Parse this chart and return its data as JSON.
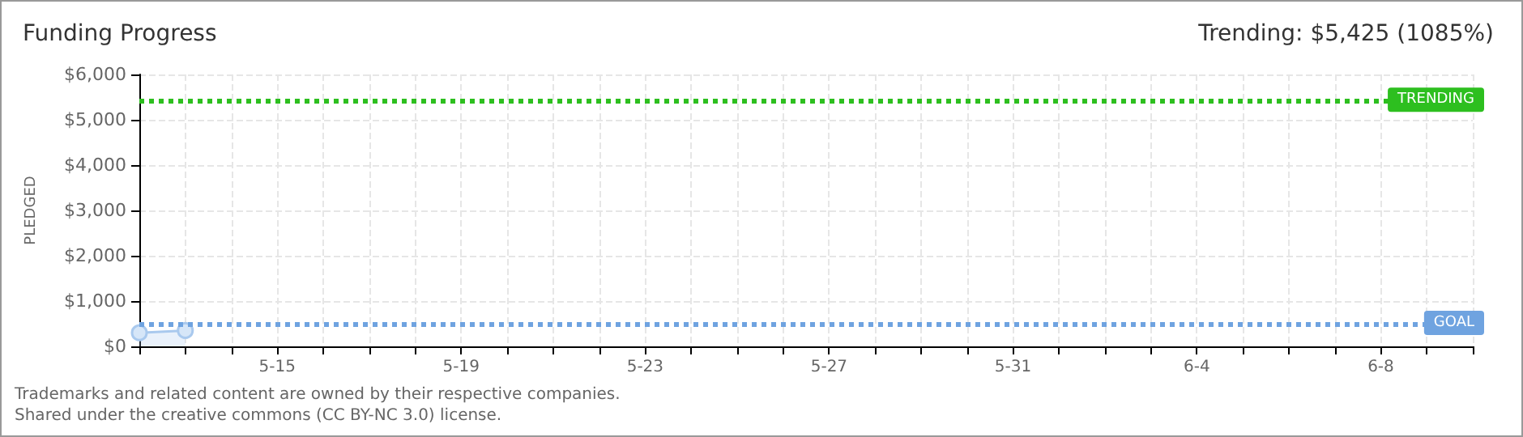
{
  "chart_data": {
    "type": "area",
    "title": "Funding Progress",
    "subtitle": "Trending: $5,425 (1085%)",
    "ylabel": "PLEDGED",
    "x": [
      "--05-12",
      "--05-13"
    ],
    "series": [
      {
        "color": "#a9c9ee",
        "values": [
          300,
          350
        ]
      }
    ],
    "xlim": [
      "--05-12",
      "--06-10"
    ],
    "xticks": [
      {
        "value": "--05-12",
        "label": null
      },
      {
        "value": "--05-13",
        "label": null
      },
      {
        "value": "--05-14",
        "label": null
      },
      {
        "value": "--05-15",
        "label": "5-15"
      },
      {
        "value": "--05-16",
        "label": null
      },
      {
        "value": "--05-17",
        "label": null
      },
      {
        "value": "--05-18",
        "label": null
      },
      {
        "value": "--05-19",
        "label": "5-19"
      },
      {
        "value": "--05-20",
        "label": null
      },
      {
        "value": "--05-21",
        "label": null
      },
      {
        "value": "--05-22",
        "label": null
      },
      {
        "value": "--05-23",
        "label": "5-23"
      },
      {
        "value": "--05-24",
        "label": null
      },
      {
        "value": "--05-25",
        "label": null
      },
      {
        "value": "--05-26",
        "label": null
      },
      {
        "value": "--05-27",
        "label": "5-27"
      },
      {
        "value": "--05-28",
        "label": null
      },
      {
        "value": "--05-29",
        "label": null
      },
      {
        "value": "--05-30",
        "label": null
      },
      {
        "value": "--05-31",
        "label": "5-31"
      },
      {
        "value": "--06-01",
        "label": null
      },
      {
        "value": "--06-02",
        "label": null
      },
      {
        "value": "--06-03",
        "label": null
      },
      {
        "value": "--06-04",
        "label": "6-4"
      },
      {
        "value": "--06-05",
        "label": null
      },
      {
        "value": "--06-06",
        "label": null
      },
      {
        "value": "--06-07",
        "label": null
      },
      {
        "value": "--06-08",
        "label": "6-8"
      },
      {
        "value": "--06-09",
        "label": null
      },
      {
        "value": "--06-10",
        "label": null
      }
    ],
    "ylim": [
      0,
      6000
    ],
    "yticks": [
      {
        "value": 0,
        "label": "$0"
      },
      {
        "value": 1000,
        "label": "$1,000"
      },
      {
        "value": 2000,
        "label": "$2,000"
      },
      {
        "value": 3000,
        "label": "$3,000"
      },
      {
        "value": 4000,
        "label": "$4,000"
      },
      {
        "value": 5000,
        "label": "$5,000"
      },
      {
        "value": 6000,
        "label": "$6,000"
      }
    ],
    "ref_lines": [
      {
        "axis": "y",
        "value": 5425,
        "label": "TRENDING",
        "color": "#2dbf1f",
        "line_style": "dotted"
      },
      {
        "axis": "y",
        "value": 500,
        "label": "GOAL",
        "color": "#6fa3e0",
        "line_style": "dotted"
      }
    ],
    "grid": true,
    "marker": "circle",
    "annotations": [
      "Trademarks and related content are owned by their respective companies.",
      "Shared under the creative commons (CC BY-NC 3.0) license."
    ]
  }
}
